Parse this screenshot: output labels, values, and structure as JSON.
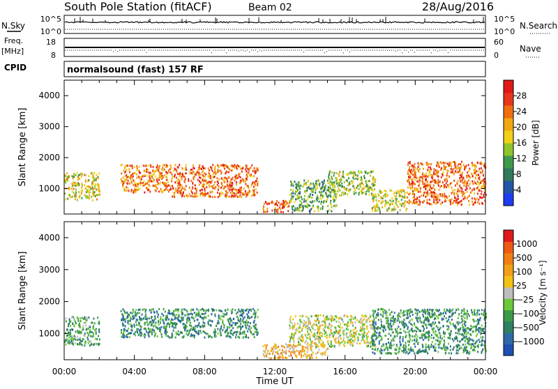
{
  "header": {
    "station": "South Pole Station (fitACF)",
    "beam": "Beam 02",
    "date": "28/Aug/2016"
  },
  "params": {
    "nsky_label": "N.Sky",
    "nsearch_label": "N.Search",
    "nsky_ticks": [
      "10^5",
      "10^0"
    ],
    "nsearch_ticks": [
      "10^5",
      "10^0"
    ],
    "freq_label_top": "Freq.",
    "freq_label_unit": "[MHz]",
    "freq_ticks": [
      "18",
      "8"
    ],
    "nave_label": "Nave",
    "nave_ticks": [
      "60",
      "0"
    ],
    "cpid_label": "CPID",
    "cpid_value": "normalsound (fast) 157 RF"
  },
  "chart_data": [
    {
      "type": "heatmap",
      "title": "",
      "xlabel": "Time UT",
      "ylabel": "Slant Range [km]",
      "x_ticks": [
        "00:00",
        "04:00",
        "08:00",
        "12:00",
        "16:00",
        "20:00",
        "00:00"
      ],
      "x_range_hours": [
        0,
        24
      ],
      "y_ticks": [
        1000,
        2000,
        3000,
        4000
      ],
      "ylim": [
        180,
        4500
      ],
      "colorbar": {
        "label": "Power [dB]",
        "ticks": [
          "4",
          "8",
          "12",
          "16",
          "20",
          "24",
          "28"
        ],
        "range": [
          0,
          30
        ],
        "colors": [
          "#1f3bf2",
          "#2356a6",
          "#2f7a5a",
          "#3f9a4b",
          "#8fc42b",
          "#f0d018",
          "#f2a614",
          "#ef6e10",
          "#e8361a",
          "#e01818"
        ]
      },
      "bands": [
        {
          "start": 0.0,
          "end": 2.0,
          "r1": 650,
          "r2": 1550,
          "level": 0.55
        },
        {
          "start": 3.2,
          "end": 6.0,
          "r1": 900,
          "r2": 1800,
          "level": 0.75
        },
        {
          "start": 6.0,
          "end": 11.0,
          "r1": 750,
          "r2": 1800,
          "level": 0.8
        },
        {
          "start": 11.3,
          "end": 12.8,
          "r1": 250,
          "r2": 650,
          "level": 0.85
        },
        {
          "start": 12.8,
          "end": 15.5,
          "r1": 300,
          "r2": 1300,
          "level": 0.35
        },
        {
          "start": 15.0,
          "end": 17.7,
          "r1": 800,
          "r2": 1600,
          "level": 0.45
        },
        {
          "start": 17.5,
          "end": 19.5,
          "r1": 300,
          "r2": 1000,
          "level": 0.5
        },
        {
          "start": 19.5,
          "end": 24.0,
          "r1": 500,
          "r2": 1900,
          "level": 0.8
        }
      ]
    },
    {
      "type": "heatmap",
      "title": "",
      "xlabel": "Time UT",
      "ylabel": "Slant Range [km]",
      "x_ticks": [
        "00:00",
        "04:00",
        "08:00",
        "12:00",
        "16:00",
        "20:00",
        "00:00"
      ],
      "x_range_hours": [
        0,
        24
      ],
      "y_ticks": [
        1000,
        2000,
        3000,
        4000
      ],
      "ylim": [
        180,
        4500
      ],
      "colorbar": {
        "label": "Velocity [m s⁻¹]",
        "ticks": [
          "1000",
          "500",
          "100",
          "25",
          "−25",
          "−100",
          "−500",
          "−1000"
        ],
        "range": [
          -1200,
          1200
        ],
        "colors": [
          "#1d4fb4",
          "#2d6aa6",
          "#2f8060",
          "#3c9a48",
          "#6cc83a",
          "#bdbdbd",
          "#f2c214",
          "#f2a018",
          "#f07e14",
          "#ee5a14",
          "#e01a1a"
        ]
      },
      "bands": [
        {
          "start": 0.0,
          "end": 2.0,
          "r1": 650,
          "r2": 1550,
          "level": 0.3
        },
        {
          "start": 3.2,
          "end": 11.0,
          "r1": 900,
          "r2": 1800,
          "level": 0.22
        },
        {
          "start": 11.3,
          "end": 15.0,
          "r1": 250,
          "r2": 700,
          "level": 0.65
        },
        {
          "start": 12.8,
          "end": 17.7,
          "r1": 600,
          "r2": 1600,
          "level": 0.5
        },
        {
          "start": 17.5,
          "end": 24.0,
          "r1": 400,
          "r2": 1800,
          "level": 0.25
        }
      ]
    }
  ]
}
